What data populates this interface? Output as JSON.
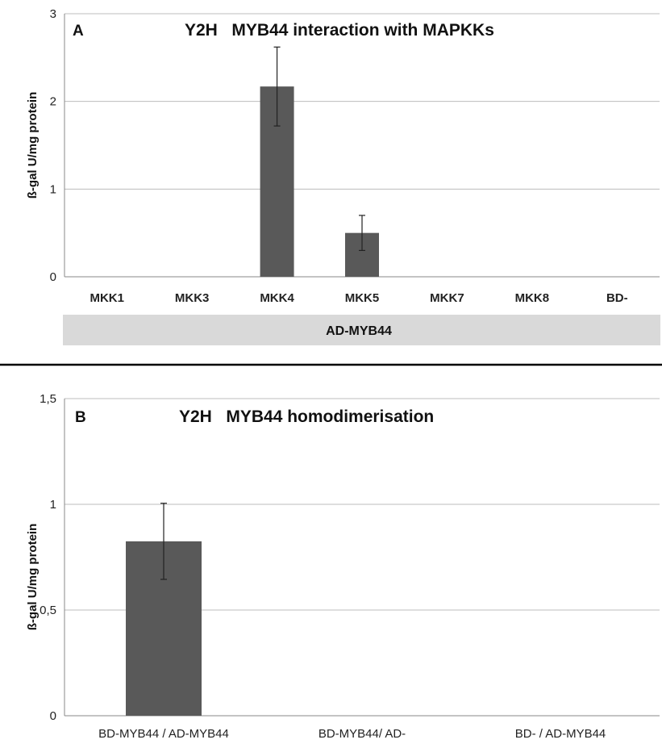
{
  "chart_data": [
    {
      "panel": "A",
      "type": "bar",
      "title": "Y2H   MYB44 interaction with MAPKKs",
      "ylabel": "ß-gal U/mg protein",
      "xlabel": "",
      "categories": [
        "MKK1",
        "MKK3",
        "MKK4",
        "MKK5",
        "MKK7",
        "MKK8",
        "BD-"
      ],
      "values": [
        0,
        0,
        2.17,
        0.5,
        0,
        0,
        0
      ],
      "errors": [
        0,
        0,
        0.45,
        0.2,
        0,
        0,
        0
      ],
      "ylim": [
        0,
        3
      ],
      "yticks": [
        "0",
        "1",
        "2",
        "3"
      ],
      "group_label": "AD-MYB44",
      "grid": true,
      "bar_color": "#595959"
    },
    {
      "panel": "B",
      "type": "bar",
      "title": "Y2H   MYB44 homodimerisation",
      "ylabel": "ß-gal U/mg protein",
      "xlabel": "",
      "categories": [
        "BD-MYB44 / AD-MYB44",
        "BD-MYB44/ AD-",
        "BD- / AD-MYB44"
      ],
      "values": [
        0.825,
        0,
        0
      ],
      "errors": [
        0.18,
        0,
        0
      ],
      "ylim": [
        0,
        1.5
      ],
      "yticks": [
        "0",
        "0,5",
        "1",
        "1,5"
      ],
      "grid": true,
      "bar_color": "#595959"
    }
  ]
}
